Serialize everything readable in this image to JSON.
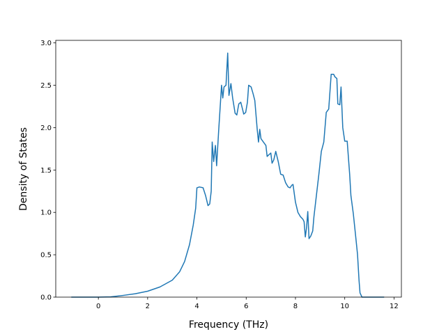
{
  "chart_data": {
    "type": "line",
    "xlabel": "Frequency (THz)",
    "ylabel": "Density of States",
    "color": "#1f77b4",
    "x": [
      -1.1,
      0,
      0.5,
      1,
      1.5,
      2,
      2.5,
      3,
      3.3,
      3.5,
      3.7,
      3.85,
      3.95,
      4.0,
      4.1,
      4.25,
      4.35,
      4.45,
      4.52,
      4.58,
      4.62,
      4.68,
      4.75,
      4.8,
      4.88,
      5.0,
      5.05,
      5.1,
      5.18,
      5.25,
      5.3,
      5.38,
      5.45,
      5.55,
      5.62,
      5.7,
      5.78,
      5.85,
      5.9,
      5.98,
      6.05,
      6.1,
      6.2,
      6.28,
      6.35,
      6.45,
      6.5,
      6.55,
      6.6,
      6.7,
      6.8,
      6.85,
      6.92,
      7.0,
      7.05,
      7.12,
      7.2,
      7.3,
      7.4,
      7.5,
      7.6,
      7.7,
      7.78,
      7.85,
      7.9,
      8.0,
      8.1,
      8.2,
      8.3,
      8.35,
      8.4,
      8.45,
      8.5,
      8.55,
      8.62,
      8.7,
      8.75,
      8.85,
      8.95,
      9.05,
      9.15,
      9.25,
      9.35,
      9.45,
      9.55,
      9.6,
      9.68,
      9.72,
      9.8,
      9.85,
      9.92,
      10.0,
      10.1,
      10.2,
      10.25,
      10.35,
      10.45,
      10.52,
      10.58,
      10.62,
      10.7,
      11.6
    ],
    "values": [
      0,
      0,
      0.003,
      0.02,
      0.04,
      0.07,
      0.12,
      0.2,
      0.3,
      0.42,
      0.62,
      0.85,
      1.05,
      1.29,
      1.3,
      1.29,
      1.2,
      1.08,
      1.1,
      1.25,
      1.83,
      1.6,
      1.79,
      1.55,
      1.95,
      2.5,
      2.35,
      2.48,
      2.5,
      2.88,
      2.38,
      2.52,
      2.35,
      2.17,
      2.15,
      2.28,
      2.3,
      2.22,
      2.16,
      2.18,
      2.3,
      2.5,
      2.48,
      2.4,
      2.32,
      1.97,
      1.83,
      1.98,
      1.87,
      1.83,
      1.79,
      1.66,
      1.68,
      1.7,
      1.58,
      1.62,
      1.72,
      1.6,
      1.45,
      1.44,
      1.35,
      1.3,
      1.29,
      1.32,
      1.33,
      1.12,
      1.0,
      0.95,
      0.92,
      0.89,
      0.71,
      0.82,
      1.01,
      0.69,
      0.72,
      0.78,
      0.95,
      1.2,
      1.45,
      1.72,
      1.83,
      2.18,
      2.22,
      2.63,
      2.63,
      2.6,
      2.58,
      2.28,
      2.27,
      2.48,
      2.0,
      1.84,
      1.84,
      1.45,
      1.2,
      0.98,
      0.7,
      0.5,
      0.2,
      0.05,
      0,
      0
    ],
    "xlim": [
      -1.73,
      12.3
    ],
    "ylim": [
      0,
      3.03
    ],
    "xticks": [
      0,
      2,
      4,
      6,
      8,
      10,
      12
    ],
    "yticks": [
      {
        "value": 0,
        "label": "0.0"
      },
      {
        "value": 0.5,
        "label": "0.5"
      },
      {
        "value": 1,
        "label": "1.0"
      },
      {
        "value": 1.5,
        "label": "1.5"
      },
      {
        "value": 2,
        "label": "2.0"
      },
      {
        "value": 2.5,
        "label": "2.5"
      },
      {
        "value": 3,
        "label": "3.0"
      }
    ]
  }
}
